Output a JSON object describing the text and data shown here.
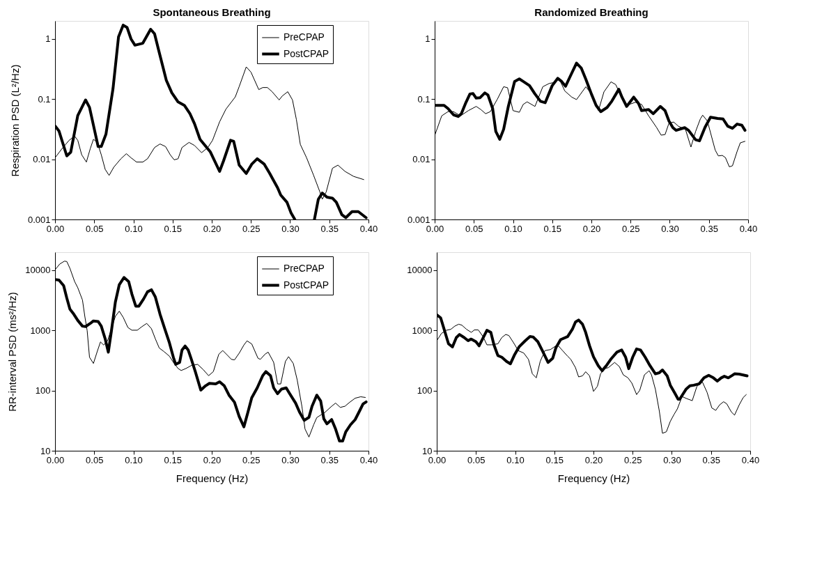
{
  "chart_data": [
    {
      "type": "line",
      "title": "Spontaneous Breathing",
      "ylabel": "Respiration PSD (L²/Hz)",
      "log": true,
      "grid": false,
      "legend": "top right",
      "line_style": "solid",
      "marker": "none",
      "xlim": [
        0,
        0.4
      ],
      "xticks": [
        {
          "value": 0,
          "label": "0.00"
        },
        {
          "value": 0.05,
          "label": "0.05"
        },
        {
          "value": 0.1,
          "label": "0.10"
        },
        {
          "value": 0.15,
          "label": "0.15"
        },
        {
          "value": 0.2,
          "label": "0.20"
        },
        {
          "value": 0.25,
          "label": "0.25"
        },
        {
          "value": 0.3,
          "label": "0.30"
        },
        {
          "value": 0.35,
          "label": "0.35"
        },
        {
          "value": 0.4,
          "label": "0.40"
        }
      ],
      "ylim": [
        0.001,
        2
      ],
      "yticks": [
        0.001,
        0.01,
        0.1,
        1
      ],
      "series": [
        {
          "name": "PreCPAP",
          "color": "#000000",
          "x": [
            0,
            0.009,
            0.018,
            0.025,
            0.029,
            0.034,
            0.04,
            0.045,
            0.049,
            0.054,
            0.059,
            0.064,
            0.069,
            0.075,
            0.084,
            0.091,
            0.097,
            0.104,
            0.112,
            0.118,
            0.127,
            0.134,
            0.141,
            0.147,
            0.152,
            0.157,
            0.162,
            0.171,
            0.178,
            0.187,
            0.195,
            0.201,
            0.21,
            0.218,
            0.23,
            0.235,
            0.244,
            0.25,
            0.26,
            0.265,
            0.271,
            0.277,
            0.286,
            0.29,
            0.297,
            0.303,
            0.308,
            0.313,
            0.321,
            0.33,
            0.338,
            0.341,
            0.346,
            0.354,
            0.361,
            0.37,
            0.381,
            0.394
          ],
          "values": [
            0.0106,
            0.0151,
            0.0207,
            0.0243,
            0.0207,
            0.0119,
            0.009,
            0.0151,
            0.0215,
            0.0191,
            0.0119,
            0.0068,
            0.0054,
            0.0074,
            0.0102,
            0.0124,
            0.0106,
            0.009,
            0.009,
            0.0102,
            0.0157,
            0.018,
            0.0163,
            0.0119,
            0.0098,
            0.0102,
            0.0157,
            0.0191,
            0.017,
            0.0129,
            0.0157,
            0.0207,
            0.042,
            0.068,
            0.109,
            0.162,
            0.344,
            0.282,
            0.144,
            0.156,
            0.156,
            0.133,
            0.097,
            0.113,
            0.133,
            0.097,
            0.0457,
            0.0177,
            0.0106,
            0.0054,
            0.00286,
            0.00217,
            0.00286,
            0.0071,
            0.008,
            0.0063,
            0.0052,
            0.0046
          ]
        },
        {
          "name": "PostCPAP",
          "color": "#000000",
          "x": [
            0,
            0.005,
            0.015,
            0.02,
            0.029,
            0.039,
            0.044,
            0.055,
            0.059,
            0.065,
            0.074,
            0.081,
            0.087,
            0.092,
            0.097,
            0.102,
            0.112,
            0.122,
            0.127,
            0.132,
            0.138,
            0.142,
            0.149,
            0.157,
            0.165,
            0.172,
            0.178,
            0.185,
            0.198,
            0.21,
            0.215,
            0.224,
            0.228,
            0.235,
            0.244,
            0.251,
            0.258,
            0.267,
            0.274,
            0.284,
            0.288,
            0.296,
            0.301,
            0.306,
            0.318,
            0.331,
            0.336,
            0.341,
            0.347,
            0.354,
            0.359,
            0.366,
            0.371,
            0.379,
            0.387,
            0.397
          ],
          "values": [
            0.036,
            0.0296,
            0.0114,
            0.0131,
            0.0535,
            0.097,
            0.073,
            0.0163,
            0.0163,
            0.0262,
            0.15,
            1.08,
            1.7,
            1.55,
            1.0,
            0.79,
            0.85,
            1.45,
            1.22,
            0.67,
            0.33,
            0.206,
            0.128,
            0.09,
            0.079,
            0.058,
            0.039,
            0.0215,
            0.0134,
            0.0063,
            0.0094,
            0.0207,
            0.0199,
            0.008,
            0.0058,
            0.0083,
            0.0102,
            0.0083,
            0.0058,
            0.00336,
            0.00254,
            0.00193,
            0.0013,
            0.001,
            null,
            0.001,
            0.00217,
            0.00275,
            0.00235,
            0.00226,
            0.00193,
            0.0012,
            0.00107,
            0.00135,
            0.00135,
            0.00107
          ]
        }
      ]
    },
    {
      "type": "line",
      "title": "Randomized Breathing",
      "log": true,
      "grid": false,
      "line_style": "solid",
      "marker": "none",
      "xlim": [
        0,
        0.4
      ],
      "xticks": [
        {
          "value": 0,
          "label": "0.00"
        },
        {
          "value": 0.05,
          "label": "0.05"
        },
        {
          "value": 0.1,
          "label": "0.10"
        },
        {
          "value": 0.15,
          "label": "0.15"
        },
        {
          "value": 0.2,
          "label": "0.20"
        },
        {
          "value": 0.25,
          "label": "0.25"
        },
        {
          "value": 0.3,
          "label": "0.30"
        },
        {
          "value": 0.35,
          "label": "0.35"
        },
        {
          "value": 0.4,
          "label": "0.40"
        }
      ],
      "ylim": [
        0.001,
        2
      ],
      "yticks": [
        0.001,
        0.01,
        0.1,
        1
      ],
      "series": [
        {
          "color": "#000000",
          "x": [
            0,
            0.009,
            0.017,
            0.024,
            0.033,
            0.043,
            0.053,
            0.059,
            0.065,
            0.071,
            0.08,
            0.088,
            0.093,
            0.1,
            0.108,
            0.113,
            0.118,
            0.128,
            0.138,
            0.146,
            0.152,
            0.159,
            0.166,
            0.175,
            0.181,
            0.193,
            0.2,
            0.209,
            0.216,
            0.225,
            0.231,
            0.239,
            0.245,
            0.256,
            0.264,
            0.273,
            0.283,
            0.289,
            0.294,
            0.299,
            0.305,
            0.311,
            0.32,
            0.327,
            0.333,
            0.339,
            0.342,
            0.348,
            0.358,
            0.362,
            0.367,
            0.371,
            0.376,
            0.38,
            0.386,
            0.39,
            0.396
          ],
          "values": [
            0.0248,
            0.0528,
            0.062,
            0.062,
            0.0528,
            0.0645,
            0.0757,
            0.0671,
            0.0573,
            0.062,
            0.1,
            0.161,
            0.155,
            0.0645,
            0.0605,
            0.0819,
            0.0902,
            0.0757,
            0.161,
            0.182,
            0.189,
            0.217,
            0.137,
            0.108,
            0.0984,
            0.161,
            0.122,
            0.0645,
            0.132,
            0.194,
            0.175,
            0.104,
            0.0788,
            0.0887,
            0.0819,
            0.0528,
            0.0341,
            0.0252,
            0.0258,
            0.04,
            0.0416,
            0.0355,
            0.0315,
            0.016,
            0.0291,
            0.0469,
            0.0542,
            0.0433,
            0.0142,
            0.0114,
            0.0116,
            0.0107,
            0.0075,
            0.0078,
            0.0136,
            0.0188,
            0.0199
          ]
        },
        {
          "color": "#000000",
          "x": [
            0,
            0.008,
            0.012,
            0.017,
            0.024,
            0.03,
            0.034,
            0.04,
            0.045,
            0.049,
            0.053,
            0.058,
            0.064,
            0.068,
            0.074,
            0.078,
            0.083,
            0.088,
            0.094,
            0.102,
            0.108,
            0.113,
            0.121,
            0.128,
            0.135,
            0.141,
            0.15,
            0.157,
            0.162,
            0.167,
            0.173,
            0.181,
            0.187,
            0.193,
            0.2,
            0.206,
            0.212,
            0.22,
            0.226,
            0.235,
            0.239,
            0.245,
            0.254,
            0.26,
            0.264,
            0.273,
            0.279,
            0.288,
            0.294,
            0.299,
            0.304,
            0.308,
            0.319,
            0.324,
            0.333,
            0.338,
            0.345,
            0.352,
            0.361,
            0.368,
            0.374,
            0.38,
            0.386,
            0.392,
            0.396
          ],
          "values": [
            0.0788,
            0.0788,
            0.0788,
            0.0699,
            0.055,
            0.0516,
            0.0573,
            0.0887,
            0.122,
            0.124,
            0.104,
            0.106,
            0.127,
            0.117,
            0.0699,
            0.0291,
            0.0215,
            0.0315,
            0.0757,
            0.197,
            0.217,
            0.197,
            0.168,
            0.122,
            0.0923,
            0.0873,
            0.168,
            0.222,
            0.197,
            0.164,
            0.24,
            0.397,
            0.33,
            0.213,
            0.122,
            0.0788,
            0.062,
            0.0727,
            0.0923,
            0.146,
            0.108,
            0.0757,
            0.108,
            0.0853,
            0.0645,
            0.0671,
            0.0573,
            0.0757,
            0.0645,
            0.0433,
            0.0336,
            0.0303,
            0.0336,
            0.0303,
            0.0211,
            0.0203,
            0.0341,
            0.05,
            0.0477,
            0.0469,
            0.0355,
            0.0328,
            0.0385,
            0.0369,
            0.0303
          ]
        }
      ]
    },
    {
      "type": "line",
      "ylabel": "RR-interval PSD (ms²/Hz)",
      "xlabel": "Frequency (Hz)",
      "log": true,
      "grid": false,
      "legend": "top right",
      "line_style": "solid",
      "marker": "none",
      "xlim": [
        0,
        0.4
      ],
      "xticks": [
        {
          "value": 0,
          "label": "0.00"
        },
        {
          "value": 0.05,
          "label": "0.05"
        },
        {
          "value": 0.1,
          "label": "0.10"
        },
        {
          "value": 0.15,
          "label": "0.15"
        },
        {
          "value": 0.2,
          "label": "0.20"
        },
        {
          "value": 0.25,
          "label": "0.25"
        },
        {
          "value": 0.3,
          "label": "0.30"
        },
        {
          "value": 0.35,
          "label": "0.35"
        },
        {
          "value": 0.4,
          "label": "0.40"
        }
      ],
      "ylim": [
        10,
        20000
      ],
      "yticks": [
        10,
        100,
        1000,
        10000
      ],
      "series": [
        {
          "name": "PreCPAP",
          "color": "#000000",
          "x": [
            0,
            0.006,
            0.012,
            0.015,
            0.019,
            0.025,
            0.029,
            0.035,
            0.038,
            0.041,
            0.044,
            0.049,
            0.054,
            0.058,
            0.062,
            0.067,
            0.072,
            0.077,
            0.082,
            0.087,
            0.093,
            0.098,
            0.105,
            0.111,
            0.117,
            0.123,
            0.128,
            0.133,
            0.139,
            0.146,
            0.151,
            0.157,
            0.161,
            0.167,
            0.174,
            0.182,
            0.189,
            0.196,
            0.202,
            0.209,
            0.214,
            0.22,
            0.225,
            0.229,
            0.235,
            0.241,
            0.245,
            0.251,
            0.259,
            0.262,
            0.268,
            0.272,
            0.279,
            0.284,
            0.288,
            0.294,
            0.298,
            0.304,
            0.309,
            0.315,
            0.319,
            0.324,
            0.33,
            0.334,
            0.34,
            0.344,
            0.353,
            0.358,
            0.364,
            0.37,
            0.376,
            0.383,
            0.39,
            0.396
          ],
          "values": [
            10200,
            12700,
            14200,
            14000,
            10800,
            6500,
            5140,
            3210,
            1720,
            993,
            358,
            283,
            453,
            645,
            573,
            671,
            1070,
            1720,
            2090,
            1650,
            1120,
            1010,
            1010,
            1160,
            1310,
            1070,
            726,
            510,
            446,
            373,
            295,
            233,
            216,
            233,
            262,
            273,
            224,
            177,
            207,
            403,
            464,
            387,
            331,
            324,
            419,
            573,
            671,
            597,
            345,
            331,
            403,
            436,
            295,
            129,
            129,
            306,
            367,
            283,
            151,
            55,
            23,
            16.9,
            27,
            35.6,
            40,
            43,
            55,
            62,
            52.6,
            55,
            64,
            74.8,
            79,
            77
          ]
        },
        {
          "name": "PostCPAP",
          "color": "#000000",
          "x": [
            0,
            0.005,
            0.011,
            0.015,
            0.019,
            0.024,
            0.029,
            0.035,
            0.039,
            0.045,
            0.049,
            0.055,
            0.059,
            0.064,
            0.068,
            0.072,
            0.077,
            0.082,
            0.088,
            0.094,
            0.098,
            0.103,
            0.107,
            0.113,
            0.118,
            0.123,
            0.128,
            0.134,
            0.14,
            0.146,
            0.151,
            0.154,
            0.159,
            0.162,
            0.166,
            0.17,
            0.174,
            0.179,
            0.186,
            0.192,
            0.197,
            0.205,
            0.21,
            0.216,
            0.222,
            0.229,
            0.235,
            0.241,
            0.246,
            0.251,
            0.258,
            0.265,
            0.269,
            0.275,
            0.279,
            0.284,
            0.289,
            0.295,
            0.299,
            0.307,
            0.312,
            0.318,
            0.324,
            0.328,
            0.334,
            0.339,
            0.343,
            0.347,
            0.353,
            0.358,
            0.363,
            0.367,
            0.371,
            0.377,
            0.383,
            0.389,
            0.393,
            0.397
          ],
          "values": [
            7030,
            6870,
            5560,
            3470,
            2260,
            1860,
            1470,
            1180,
            1160,
            1310,
            1440,
            1410,
            1180,
            726,
            436,
            993,
            2970,
            5780,
            7600,
            6500,
            4060,
            2540,
            2540,
            3340,
            4390,
            4750,
            3610,
            1860,
            1070,
            621,
            358,
            273,
            295,
            471,
            551,
            471,
            331,
            207,
            102,
            120,
            132,
            129,
            140,
            120,
            84,
            64,
            37,
            25,
            43,
            76,
            111,
            177,
            207,
            177,
            111,
            89,
            106,
            111,
            91,
            62,
            44,
            32,
            36,
            55,
            84,
            67,
            34,
            28,
            33,
            23,
            14.5,
            14.5,
            20.6,
            27,
            33,
            47,
            60,
            65
          ]
        }
      ]
    },
    {
      "type": "line",
      "xlabel": "Frequency (Hz)",
      "log": true,
      "grid": false,
      "line_style": "solid",
      "marker": "none",
      "xlim": [
        0,
        0.4
      ],
      "xticks": [
        {
          "value": 0,
          "label": "0.00"
        },
        {
          "value": 0.05,
          "label": "0.05"
        },
        {
          "value": 0.1,
          "label": "0.10"
        },
        {
          "value": 0.15,
          "label": "0.15"
        },
        {
          "value": 0.2,
          "label": "0.20"
        },
        {
          "value": 0.25,
          "label": "0.25"
        },
        {
          "value": 0.3,
          "label": "0.30"
        },
        {
          "value": 0.35,
          "label": "0.35"
        },
        {
          "value": 0.4,
          "label": "0.40"
        }
      ],
      "ylim": [
        10,
        20000
      ],
      "yticks": [
        10,
        100,
        1000,
        10000
      ],
      "series": [
        {
          "color": "#000000",
          "x": [
            0,
            0.006,
            0.012,
            0.018,
            0.023,
            0.028,
            0.032,
            0.038,
            0.044,
            0.048,
            0.053,
            0.059,
            0.064,
            0.07,
            0.078,
            0.083,
            0.088,
            0.092,
            0.098,
            0.104,
            0.111,
            0.117,
            0.122,
            0.127,
            0.132,
            0.138,
            0.145,
            0.154,
            0.161,
            0.167,
            0.171,
            0.177,
            0.181,
            0.186,
            0.19,
            0.195,
            0.2,
            0.205,
            0.209,
            0.214,
            0.219,
            0.227,
            0.233,
            0.238,
            0.244,
            0.249,
            0.255,
            0.259,
            0.265,
            0.271,
            0.274,
            0.279,
            0.284,
            0.288,
            0.293,
            0.298,
            0.303,
            0.307,
            0.313,
            0.319,
            0.326,
            0.332,
            0.339,
            0.345,
            0.351,
            0.356,
            0.361,
            0.366,
            0.37,
            0.376,
            0.38,
            0.386,
            0.391,
            0.395
          ],
          "values": [
            676,
            892,
            1005,
            1045,
            1180,
            1270,
            1225,
            1045,
            929,
            1020,
            1020,
            792,
            577,
            577,
            600,
            762,
            858,
            824,
            625,
            462,
            421,
            331,
            190,
            163,
            306,
            462,
            481,
            577,
            455,
            373,
            331,
            241,
            169,
            176,
            206,
            176,
            97,
            118,
            190,
            232,
            241,
            294,
            251,
            183,
            163,
            133,
            86,
            101,
            183,
            214,
            183,
            105,
            45.7,
            19.5,
            20.7,
            30.8,
            40.6,
            49.5,
            79.6,
            73.6,
            68,
            118,
            139,
            93,
            51.5,
            46.9,
            58,
            65.3,
            60.4,
            44,
            39.1,
            58,
            76.6,
            86
          ]
        },
        {
          "color": "#000000",
          "x": [
            0,
            0.005,
            0.009,
            0.015,
            0.02,
            0.025,
            0.029,
            0.035,
            0.04,
            0.044,
            0.05,
            0.054,
            0.06,
            0.064,
            0.069,
            0.073,
            0.078,
            0.083,
            0.089,
            0.094,
            0.099,
            0.105,
            0.113,
            0.119,
            0.123,
            0.129,
            0.135,
            0.142,
            0.148,
            0.152,
            0.158,
            0.167,
            0.173,
            0.177,
            0.181,
            0.186,
            0.19,
            0.195,
            0.2,
            0.206,
            0.211,
            0.217,
            0.222,
            0.23,
            0.236,
            0.241,
            0.245,
            0.25,
            0.255,
            0.26,
            0.266,
            0.272,
            0.279,
            0.284,
            0.288,
            0.294,
            0.298,
            0.304,
            0.308,
            0.31,
            0.318,
            0.323,
            0.328,
            0.335,
            0.341,
            0.347,
            0.353,
            0.358,
            0.363,
            0.367,
            0.372,
            0.377,
            0.38,
            0.386,
            0.396
          ],
          "values": [
            1820,
            1620,
            1090,
            600,
            533,
            762,
            858,
            762,
            676,
            720,
            650,
            555,
            792,
            1005,
            929,
            577,
            382,
            359,
            306,
            279,
            388,
            533,
            676,
            792,
            780,
            650,
            455,
            294,
            345,
            513,
            703,
            792,
            1045,
            1380,
            1490,
            1270,
            929,
            555,
            365,
            261,
            214,
            266,
            331,
            437,
            473,
            359,
            232,
            359,
            493,
            473,
            359,
            261,
            190,
            198,
            220,
            176,
            123,
            89.7,
            72,
            72,
            105,
            120,
            123,
            130,
            163,
            179,
            163,
            144,
            163,
            173,
            163,
            179,
            190,
            188,
            176
          ]
        }
      ]
    }
  ]
}
